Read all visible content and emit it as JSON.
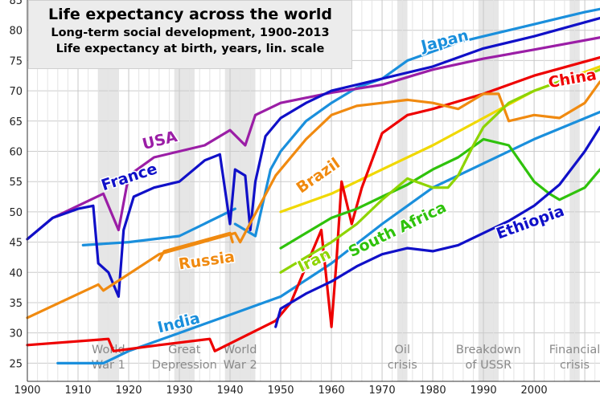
{
  "chart_data": {
    "type": "line",
    "title": "Life expectancy across the world",
    "subtitle": "Long-term social development, 1900-2013",
    "subtitle2": "Life expectancy at birth, years, lin. scale",
    "xlim": [
      1900,
      2013
    ],
    "ylim": [
      22,
      85
    ],
    "x_ticks": [
      1900,
      1910,
      1920,
      1930,
      1940,
      1950,
      1960,
      1970,
      1980,
      1990,
      2000
    ],
    "y_ticks": [
      25,
      30,
      35,
      40,
      45,
      50,
      55,
      60,
      65,
      70,
      75,
      80,
      85
    ],
    "grid": true,
    "events": [
      {
        "line1": "World",
        "line2": "War 1",
        "x_start": 1914,
        "x_end": 1918
      },
      {
        "line1": "Great",
        "line2": "Depression",
        "x_start": 1929,
        "x_end": 1933
      },
      {
        "line1": "World",
        "line2": "War 2",
        "x_start": 1939,
        "x_end": 1945
      },
      {
        "line1": "Oil",
        "line2": "crisis",
        "x_start": 1973,
        "x_end": 1975
      },
      {
        "line1": "Breakdown",
        "line2": "of USSR",
        "x_start": 1989,
        "x_end": 1993
      },
      {
        "line1": "Financial",
        "line2": "crisis",
        "x_start": 2007,
        "x_end": 2009
      }
    ],
    "series": [
      {
        "name": "India",
        "color": "#1a8fdc",
        "label_x": 1926,
        "label_y": 30,
        "label_rot": -14,
        "x": [
          1906,
          1915,
          1920,
          1930,
          1940,
          1950,
          1960,
          1970,
          1980,
          1990,
          2000,
          2013
        ],
        "y": [
          25,
          25,
          27,
          30,
          33,
          36,
          41.5,
          48,
          54,
          58,
          62,
          66.5
        ]
      },
      {
        "name": "Japan",
        "color": "#1a8fdc",
        "label_x": 1978,
        "label_y": 76.5,
        "label_rot": -14,
        "x": [
          1941,
          1945,
          1948,
          1950,
          1955,
          1960,
          1965,
          1970,
          1975,
          1980,
          1985,
          1990,
          1995,
          2000,
          2005,
          2010,
          2013
        ],
        "y": [
          48,
          46,
          57,
          60,
          65,
          68,
          70.5,
          72,
          75,
          76.5,
          78,
          79,
          80,
          81,
          82,
          83,
          83.5
        ]
      },
      {
        "name": "USA",
        "color": "#9b1ea6",
        "label_x": 1923,
        "label_y": 60.3,
        "label_rot": -14,
        "x": [
          1900,
          1905,
          1910,
          1915,
          1918,
          1920,
          1925,
          1930,
          1935,
          1940,
          1943,
          1945,
          1950,
          1960,
          1970,
          1980,
          1990,
          2000,
          2013
        ],
        "y": [
          45.5,
          49,
          51,
          53,
          47,
          56,
          59,
          60,
          61,
          63.5,
          61,
          66,
          68,
          69.7,
          71,
          73.5,
          75.3,
          76.8,
          78.8
        ]
      },
      {
        "name": "France",
        "color": "#1010c8",
        "label_x": 1915,
        "label_y": 53.5,
        "label_rot": -18,
        "x": [
          1900,
          1905,
          1910,
          1913,
          1914,
          1916,
          1918,
          1919,
          1921,
          1925,
          1930,
          1935,
          1938,
          1940,
          1941,
          1943,
          1944,
          1945,
          1947,
          1950,
          1955,
          1960,
          1970,
          1980,
          1990,
          2000,
          2013
        ],
        "y": [
          45.5,
          49,
          50.5,
          51,
          41.5,
          40,
          36,
          47,
          52.5,
          54,
          55,
          58.5,
          59.5,
          48,
          57,
          56,
          47,
          55,
          62.5,
          65.5,
          68,
          70,
          72,
          74,
          77,
          79,
          82
        ]
      },
      {
        "name": "China",
        "color": "#ee0000",
        "label_x": 2003,
        "label_y": 70.5,
        "label_rot": -10,
        "x": [
          1900,
          1916,
          1917,
          1926,
          1936,
          1937,
          1949,
          1952,
          1958,
          1959,
          1960,
          1961,
          1962,
          1964,
          1966,
          1970,
          1975,
          1980,
          1990,
          2000,
          2013
        ],
        "y": [
          28,
          29,
          27,
          28,
          29,
          27,
          32,
          35,
          47,
          39,
          31,
          42,
          55,
          48,
          54,
          63,
          66,
          67,
          69.5,
          72.5,
          75.5
        ]
      },
      {
        "name": "Brazil",
        "color": "#f08a10",
        "label_x": 1954,
        "label_y": 53,
        "label_rot": -35,
        "x": [
          1900,
          1914,
          1915,
          1926,
          1941,
          1942,
          1949,
          1955,
          1960,
          1965,
          1970,
          1975,
          1980,
          1985,
          1990,
          1993,
          1995,
          2000,
          2005,
          2010,
          2013
        ],
        "y": [
          32.5,
          38,
          37,
          43,
          46.5,
          45,
          56,
          62,
          66,
          67.5,
          68,
          68.5,
          68,
          67,
          69.5,
          69.5,
          65,
          66,
          65.5,
          68,
          71.5
        ]
      },
      {
        "name": "South Africa",
        "color": "#2fc20c",
        "label_x": 1964,
        "label_y": 42.5,
        "label_rot": -26,
        "x": [
          1950,
          1955,
          1960,
          1965,
          1970,
          1975,
          1980,
          1985,
          1990,
          1995,
          2000,
          2003,
          2005,
          2010,
          2013
        ],
        "y": [
          44,
          46.5,
          49,
          50.5,
          52.5,
          54.5,
          57,
          59,
          62,
          61,
          55,
          53,
          52,
          54,
          57
        ]
      },
      {
        "name": "Iran",
        "color": "#8ed400",
        "label_x": 1954,
        "label_y": 40,
        "label_rot": -26,
        "x": [
          1950,
          1955,
          1960,
          1965,
          1970,
          1975,
          1980,
          1983,
          1985,
          1988,
          1990,
          1995,
          2000,
          2005,
          2010,
          2013
        ],
        "y": [
          40,
          42.5,
          45,
          48,
          52,
          55.5,
          54,
          54,
          56,
          61,
          64,
          68,
          70,
          71.5,
          72.5,
          73.5
        ]
      },
      {
        "name": "Russia",
        "color": "#f08a10",
        "label_x": 1930,
        "label_y": 40.5,
        "label_rot": -8,
        "x": [
          1926,
          1927,
          1940,
          1940.5
        ],
        "y": [
          42,
          43.5,
          46.5,
          45
        ]
      },
      {
        "name": "Ethiopia",
        "color": "#1010c8",
        "label_x": 1993,
        "label_y": 45.5,
        "label_rot": -20,
        "x": [
          1949,
          1950,
          1955,
          1960,
          1965,
          1970,
          1975,
          1980,
          1985,
          1990,
          1995,
          2000,
          2005,
          2010,
          2013
        ],
        "y": [
          31,
          34,
          36.5,
          38.5,
          41,
          43,
          44,
          43.5,
          44.5,
          46.5,
          48.5,
          51,
          54.5,
          60,
          64
        ]
      }
    ],
    "extra_lines": [
      {
        "color": "#f0d800",
        "x": [
          1950,
          1960,
          1970,
          1980,
          1990,
          2000,
          2013
        ],
        "y": [
          50,
          53,
          57,
          61,
          65.5,
          70,
          74
        ]
      },
      {
        "color": "#1a8fdc",
        "x": [
          1911,
          1920,
          1930,
          1941
        ],
        "y": [
          44.5,
          45,
          46,
          50.5
        ]
      }
    ]
  }
}
